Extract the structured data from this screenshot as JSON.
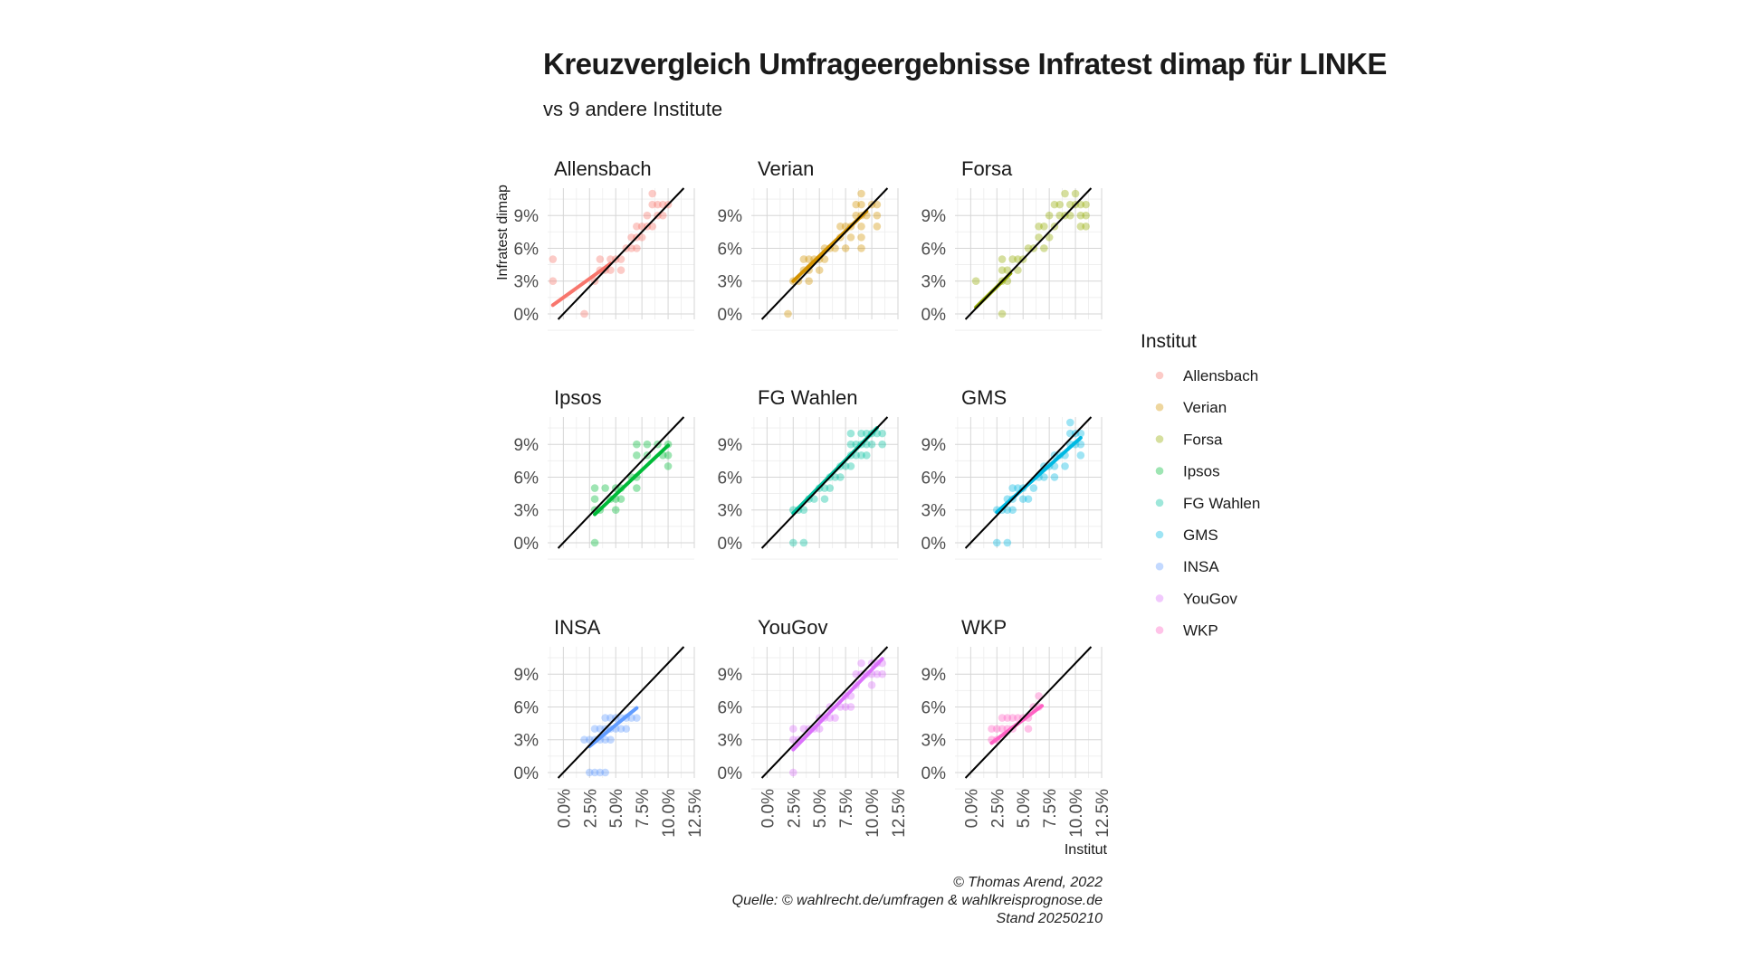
{
  "title": "Kreuzvergleich Umfrageergebnisse Infratest dimap für LINKE",
  "subtitle": "vs 9 andere Institute",
  "caption": {
    "line1": "© Thomas Arend, 2022",
    "line2": "Quelle: © wahlrecht.de/umfragen & wahlkreisprognose.de",
    "line3": "Stand 20250210"
  },
  "chart_data": {
    "type": "scatter",
    "facet_layout": "3x3",
    "xlabel": "Institut",
    "ylabel": "Infratest dimap",
    "x_ticks": [
      "0.0%",
      "2.5%",
      "5.0%",
      "7.5%",
      "10.0%",
      "12.5%"
    ],
    "y_ticks": [
      "0%",
      "3%",
      "6%",
      "9%"
    ],
    "xlim": [
      -1.5,
      12.5
    ],
    "ylim": [
      -0.5,
      11.5
    ],
    "grid": true,
    "legend": {
      "title": "Institut",
      "placement": "right"
    },
    "reference_line": "y = x",
    "facets": [
      {
        "name": "Allensbach",
        "color": "#F8766D",
        "trend": [
          [
            -1,
            0.8
          ],
          [
            4.5,
            4.6
          ]
        ],
        "points": [
          [
            -1,
            5
          ],
          [
            -1,
            3
          ],
          [
            2,
            0
          ],
          [
            3,
            3
          ],
          [
            3.5,
            4
          ],
          [
            3.5,
            5
          ],
          [
            4,
            4
          ],
          [
            4.5,
            4
          ],
          [
            4.5,
            5
          ],
          [
            5,
            5
          ],
          [
            5.5,
            4
          ],
          [
            5.5,
            5
          ],
          [
            6,
            6
          ],
          [
            6.5,
            6
          ],
          [
            6.5,
            7
          ],
          [
            7,
            6
          ],
          [
            7,
            7
          ],
          [
            7,
            8
          ],
          [
            7.5,
            7
          ],
          [
            7.5,
            8
          ],
          [
            8,
            8
          ],
          [
            8,
            9
          ],
          [
            8.5,
            8
          ],
          [
            8.5,
            10
          ],
          [
            8.5,
            11
          ],
          [
            9,
            9
          ],
          [
            9,
            10
          ],
          [
            9.5,
            9
          ],
          [
            9.5,
            10
          ],
          [
            10,
            10
          ]
        ]
      },
      {
        "name": "Verian",
        "color": "#D39200",
        "trend": [
          [
            2.5,
            3.0
          ],
          [
            9.5,
            9.4
          ]
        ],
        "points": [
          [
            2,
            0
          ],
          [
            2.5,
            3
          ],
          [
            3,
            3
          ],
          [
            3.5,
            4
          ],
          [
            3.5,
            5
          ],
          [
            4,
            3
          ],
          [
            4,
            4
          ],
          [
            4,
            5
          ],
          [
            4.5,
            5
          ],
          [
            5,
            4
          ],
          [
            5,
            5
          ],
          [
            5.5,
            5
          ],
          [
            5.5,
            6
          ],
          [
            6,
            6
          ],
          [
            6.5,
            6
          ],
          [
            7,
            7
          ],
          [
            7,
            8
          ],
          [
            7.5,
            6
          ],
          [
            7.5,
            8
          ],
          [
            8,
            7
          ],
          [
            8,
            8
          ],
          [
            8.5,
            9
          ],
          [
            8.5,
            10
          ],
          [
            9,
            6
          ],
          [
            9,
            7
          ],
          [
            9,
            8
          ],
          [
            9,
            9
          ],
          [
            9,
            10
          ],
          [
            9,
            11
          ],
          [
            9.5,
            9
          ],
          [
            10,
            10
          ],
          [
            10.5,
            8
          ],
          [
            10.5,
            9
          ],
          [
            10.5,
            10
          ]
        ]
      },
      {
        "name": "Forsa",
        "color": "#93AA00",
        "trend": [
          [
            0.5,
            0.6
          ],
          [
            3.8,
            3.7
          ]
        ],
        "points": [
          [
            0.5,
            3
          ],
          [
            3,
            0
          ],
          [
            3,
            3
          ],
          [
            3,
            4
          ],
          [
            3,
            5
          ],
          [
            3.5,
            3
          ],
          [
            3.5,
            4
          ],
          [
            4,
            5
          ],
          [
            4.5,
            4
          ],
          [
            4.5,
            5
          ],
          [
            5,
            5
          ],
          [
            5.5,
            6
          ],
          [
            6,
            6
          ],
          [
            6.5,
            7
          ],
          [
            6.5,
            8
          ],
          [
            7,
            6
          ],
          [
            7,
            8
          ],
          [
            7.5,
            7
          ],
          [
            7.5,
            9
          ],
          [
            8,
            8
          ],
          [
            8,
            10
          ],
          [
            8.5,
            9
          ],
          [
            8.5,
            10
          ],
          [
            9,
            9
          ],
          [
            9,
            11
          ],
          [
            9.5,
            9
          ],
          [
            9.5,
            10
          ],
          [
            10,
            10
          ],
          [
            10,
            11
          ],
          [
            10.5,
            8
          ],
          [
            10.5,
            9
          ],
          [
            10.5,
            10
          ],
          [
            11,
            8
          ],
          [
            11,
            9
          ],
          [
            11,
            10
          ]
        ]
      },
      {
        "name": "Ipsos",
        "color": "#00BA38",
        "trend": [
          [
            3,
            2.6
          ],
          [
            10,
            8.9
          ]
        ],
        "points": [
          [
            3,
            0
          ],
          [
            3,
            3
          ],
          [
            3,
            4
          ],
          [
            3,
            5
          ],
          [
            3.5,
            3
          ],
          [
            4,
            5
          ],
          [
            4.5,
            4
          ],
          [
            5,
            3
          ],
          [
            5,
            4
          ],
          [
            5,
            5
          ],
          [
            5.5,
            4
          ],
          [
            5.5,
            5
          ],
          [
            6.5,
            6
          ],
          [
            7,
            5
          ],
          [
            7,
            6
          ],
          [
            7,
            8
          ],
          [
            7,
            9
          ],
          [
            8,
            8
          ],
          [
            8,
            9
          ],
          [
            9,
            9
          ],
          [
            9.5,
            8
          ],
          [
            10,
            7
          ],
          [
            10,
            8
          ],
          [
            10,
            9
          ]
        ]
      },
      {
        "name": "FG Wahlen",
        "color": "#00C19F",
        "trend": [
          [
            2.5,
            2.7
          ],
          [
            10.5,
            10.5
          ]
        ],
        "points": [
          [
            2.5,
            0
          ],
          [
            2.5,
            3
          ],
          [
            3,
            3
          ],
          [
            3.5,
            0
          ],
          [
            3.5,
            3
          ],
          [
            4,
            4
          ],
          [
            4.5,
            4
          ],
          [
            5,
            5
          ],
          [
            5.5,
            4
          ],
          [
            5.5,
            5
          ],
          [
            6,
            5
          ],
          [
            6,
            6
          ],
          [
            6.5,
            6
          ],
          [
            7,
            6
          ],
          [
            7,
            7
          ],
          [
            7.5,
            7
          ],
          [
            8,
            7
          ],
          [
            8,
            8
          ],
          [
            8,
            9
          ],
          [
            8,
            10
          ],
          [
            8.5,
            8
          ],
          [
            8.5,
            9
          ],
          [
            9,
            8
          ],
          [
            9,
            9
          ],
          [
            9,
            10
          ],
          [
            9.5,
            8
          ],
          [
            9.5,
            9
          ],
          [
            9.5,
            10
          ],
          [
            10,
            9
          ],
          [
            10,
            10
          ],
          [
            10.5,
            10
          ],
          [
            11,
            9
          ],
          [
            11,
            10
          ]
        ]
      },
      {
        "name": "GMS",
        "color": "#00B9E3",
        "trend": [
          [
            2.5,
            2.8
          ],
          [
            10.5,
            9.6
          ]
        ],
        "points": [
          [
            2.5,
            0
          ],
          [
            2.5,
            3
          ],
          [
            3,
            3
          ],
          [
            3.5,
            0
          ],
          [
            3.5,
            3
          ],
          [
            3.5,
            4
          ],
          [
            4,
            3
          ],
          [
            4,
            4
          ],
          [
            4,
            5
          ],
          [
            4.5,
            5
          ],
          [
            5,
            4
          ],
          [
            5,
            5
          ],
          [
            5.5,
            4
          ],
          [
            6,
            5
          ],
          [
            6.5,
            6
          ],
          [
            7,
            6
          ],
          [
            7,
            7
          ],
          [
            7.5,
            7
          ],
          [
            8,
            6
          ],
          [
            8,
            7
          ],
          [
            8,
            8
          ],
          [
            8.5,
            8
          ],
          [
            9,
            7
          ],
          [
            9,
            8
          ],
          [
            9.5,
            9
          ],
          [
            9.5,
            10
          ],
          [
            9.5,
            11
          ],
          [
            10,
            9
          ],
          [
            10,
            10
          ],
          [
            10.5,
            8
          ],
          [
            10.5,
            9
          ],
          [
            10.5,
            10
          ]
        ]
      },
      {
        "name": "INSA",
        "color": "#619CFF",
        "trend": [
          [
            2.5,
            2.4
          ],
          [
            7,
            5.9
          ]
        ],
        "points": [
          [
            2,
            3
          ],
          [
            2.5,
            0
          ],
          [
            2.5,
            3
          ],
          [
            3,
            0
          ],
          [
            3,
            3
          ],
          [
            3,
            4
          ],
          [
            3.5,
            0
          ],
          [
            3.5,
            3
          ],
          [
            3.5,
            4
          ],
          [
            4,
            0
          ],
          [
            4,
            3
          ],
          [
            4,
            4
          ],
          [
            4,
            5
          ],
          [
            4.5,
            3
          ],
          [
            4.5,
            4
          ],
          [
            4.5,
            5
          ],
          [
            5,
            4
          ],
          [
            5,
            5
          ],
          [
            5.5,
            4
          ],
          [
            5.5,
            5
          ],
          [
            6,
            4
          ],
          [
            6,
            5
          ],
          [
            6.5,
            5
          ],
          [
            7,
            5
          ]
        ]
      },
      {
        "name": "YouGov",
        "color": "#DB72FB",
        "trend": [
          [
            2.5,
            2.1
          ],
          [
            11,
            10.4
          ]
        ],
        "points": [
          [
            2.5,
            0
          ],
          [
            2.5,
            3
          ],
          [
            2.5,
            4
          ],
          [
            3,
            3
          ],
          [
            3.5,
            4
          ],
          [
            4,
            4
          ],
          [
            4.5,
            4
          ],
          [
            5,
            4
          ],
          [
            5,
            5
          ],
          [
            5.5,
            5
          ],
          [
            6,
            5
          ],
          [
            6,
            6
          ],
          [
            6.5,
            5
          ],
          [
            7,
            6
          ],
          [
            7.5,
            6
          ],
          [
            7.5,
            7
          ],
          [
            8,
            6
          ],
          [
            8,
            7
          ],
          [
            8.5,
            8
          ],
          [
            8.5,
            9
          ],
          [
            9,
            9
          ],
          [
            9,
            10
          ],
          [
            9.5,
            9
          ],
          [
            10,
            8
          ],
          [
            10,
            9
          ],
          [
            10,
            10
          ],
          [
            10.5,
            9
          ],
          [
            10.5,
            10
          ],
          [
            11,
            9
          ],
          [
            11,
            10
          ]
        ]
      },
      {
        "name": "WKP",
        "color": "#FF61C3",
        "trend": [
          [
            2,
            2.7
          ],
          [
            6.8,
            6.1
          ]
        ],
        "points": [
          [
            2,
            3
          ],
          [
            2,
            4
          ],
          [
            2.5,
            3
          ],
          [
            2.5,
            4
          ],
          [
            3,
            4
          ],
          [
            3,
            5
          ],
          [
            3.5,
            4
          ],
          [
            3.5,
            5
          ],
          [
            4,
            4
          ],
          [
            4,
            5
          ],
          [
            4.5,
            5
          ],
          [
            5,
            5
          ],
          [
            5.5,
            4
          ],
          [
            5.5,
            5
          ],
          [
            6,
            6
          ],
          [
            6.5,
            6
          ],
          [
            6.5,
            7
          ]
        ]
      }
    ]
  }
}
